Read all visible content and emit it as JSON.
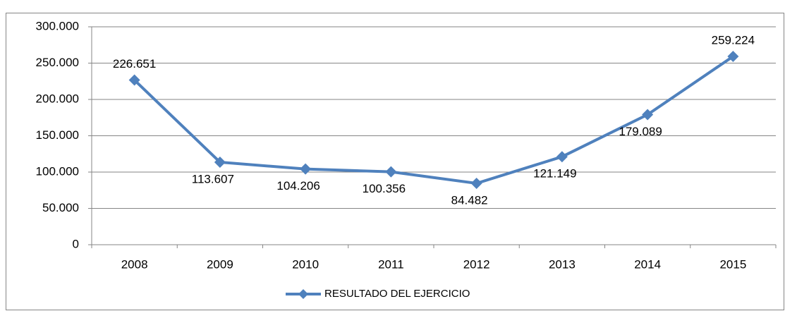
{
  "chart_data": {
    "type": "line",
    "categories": [
      "2008",
      "2009",
      "2010",
      "2011",
      "2012",
      "2013",
      "2014",
      "2015"
    ],
    "series": [
      {
        "name": "RESULTADO DEL EJERCICIO",
        "color": "#4f81bd",
        "values": [
          226651,
          113607,
          104206,
          100356,
          84482,
          121149,
          179089,
          259224
        ],
        "value_labels": [
          "226.651",
          "113.607",
          "104.206",
          "100.356",
          "84.482",
          "121.149",
          "179.089",
          "259.224"
        ]
      }
    ],
    "ylim": [
      0,
      300000
    ],
    "yticks": [
      0,
      {
        "value": 50000,
        "label": "50.000"
      },
      {
        "value": 100000,
        "label": "100.000"
      },
      {
        "value": 150000,
        "label": "150.000"
      },
      {
        "value": 200000,
        "label": "200.000"
      },
      {
        "value": 250000,
        "label": "250.000"
      },
      {
        "value": 300000,
        "label": "300.000"
      }
    ],
    "grid": true,
    "legend": "bottom"
  }
}
